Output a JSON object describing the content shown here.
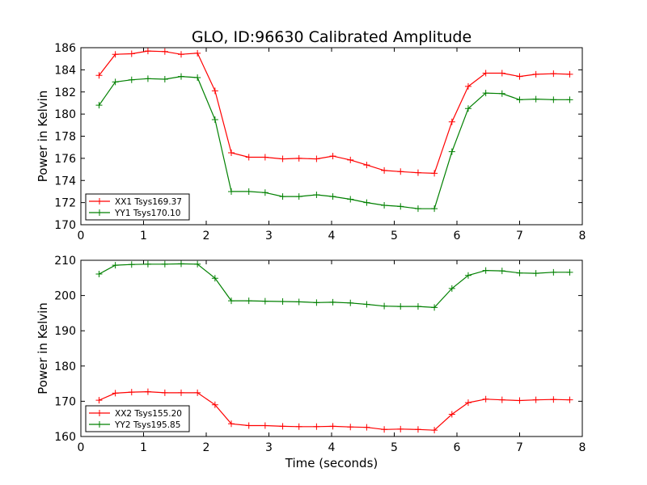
{
  "figure": {
    "title": "GLO, ID:96630 Calibrated Amplitude",
    "xlabel": "Time (seconds)"
  },
  "chart_data": [
    {
      "type": "line",
      "title": "GLO, ID:96630 Calibrated Amplitude",
      "xlabel": "",
      "ylabel": "Power in Kelvin",
      "xlim": [
        0,
        8
      ],
      "ylim": [
        170,
        186
      ],
      "xticks": [
        0,
        1,
        2,
        3,
        4,
        5,
        6,
        7,
        8
      ],
      "yticks": [
        170,
        172,
        174,
        176,
        178,
        180,
        182,
        184,
        186
      ],
      "grid": false,
      "legend_position": "lower-left",
      "x": [
        0.29,
        0.55,
        0.81,
        1.07,
        1.34,
        1.6,
        1.86,
        2.14,
        2.4,
        2.68,
        2.94,
        3.22,
        3.48,
        3.76,
        4.02,
        4.3,
        4.56,
        4.84,
        5.1,
        5.38,
        5.64,
        5.92,
        6.18,
        6.46,
        6.72,
        7.0,
        7.26,
        7.54,
        7.8
      ],
      "series": [
        {
          "name": "XX1 Tsys169.37",
          "color": "#ff0000",
          "values": [
            183.5,
            185.4,
            185.45,
            185.7,
            185.65,
            185.4,
            185.5,
            182.1,
            176.5,
            176.1,
            176.1,
            175.95,
            176.0,
            175.95,
            176.2,
            175.85,
            175.4,
            174.9,
            174.8,
            174.7,
            174.65,
            179.3,
            182.5,
            183.7,
            183.7,
            183.4,
            183.6,
            183.65,
            183.6
          ]
        },
        {
          "name": "YY1 Tsys170.10",
          "color": "#008000",
          "values": [
            180.8,
            182.9,
            183.1,
            183.2,
            183.15,
            183.4,
            183.3,
            179.5,
            173.0,
            173.0,
            172.9,
            172.55,
            172.55,
            172.7,
            172.55,
            172.3,
            172.0,
            171.75,
            171.65,
            171.45,
            171.45,
            176.6,
            180.5,
            181.9,
            181.85,
            181.3,
            181.35,
            181.3,
            181.3
          ]
        }
      ]
    },
    {
      "type": "line",
      "title": "",
      "xlabel": "Time (seconds)",
      "ylabel": "Power in Kelvin",
      "xlim": [
        0,
        8
      ],
      "ylim": [
        160,
        210
      ],
      "xticks": [
        0,
        1,
        2,
        3,
        4,
        5,
        6,
        7,
        8
      ],
      "yticks": [
        160,
        170,
        180,
        190,
        200,
        210
      ],
      "grid": false,
      "legend_position": "lower-left",
      "x": [
        0.29,
        0.55,
        0.81,
        1.07,
        1.34,
        1.6,
        1.86,
        2.14,
        2.4,
        2.68,
        2.94,
        3.22,
        3.48,
        3.76,
        4.02,
        4.3,
        4.56,
        4.84,
        5.1,
        5.38,
        5.64,
        5.92,
        6.18,
        6.46,
        6.72,
        7.0,
        7.26,
        7.54,
        7.8
      ],
      "series": [
        {
          "name": "XX2 Tsys155.20",
          "color": "#ff0000",
          "values": [
            170.3,
            172.3,
            172.6,
            172.7,
            172.4,
            172.4,
            172.4,
            169.0,
            163.6,
            163.1,
            163.1,
            162.9,
            162.8,
            162.8,
            162.9,
            162.7,
            162.6,
            162.0,
            162.1,
            162.0,
            161.8,
            166.3,
            169.6,
            170.6,
            170.4,
            170.2,
            170.4,
            170.5,
            170.4
          ]
        },
        {
          "name": "YY2 Tsys195.85",
          "color": "#008000",
          "values": [
            206.1,
            208.6,
            208.8,
            208.9,
            208.9,
            209.0,
            208.9,
            204.9,
            198.5,
            198.5,
            198.4,
            198.3,
            198.2,
            198.0,
            198.1,
            197.9,
            197.5,
            197.0,
            196.9,
            196.9,
            196.6,
            202.0,
            205.7,
            207.1,
            207.0,
            206.4,
            206.3,
            206.6,
            206.6
          ]
        }
      ]
    }
  ]
}
